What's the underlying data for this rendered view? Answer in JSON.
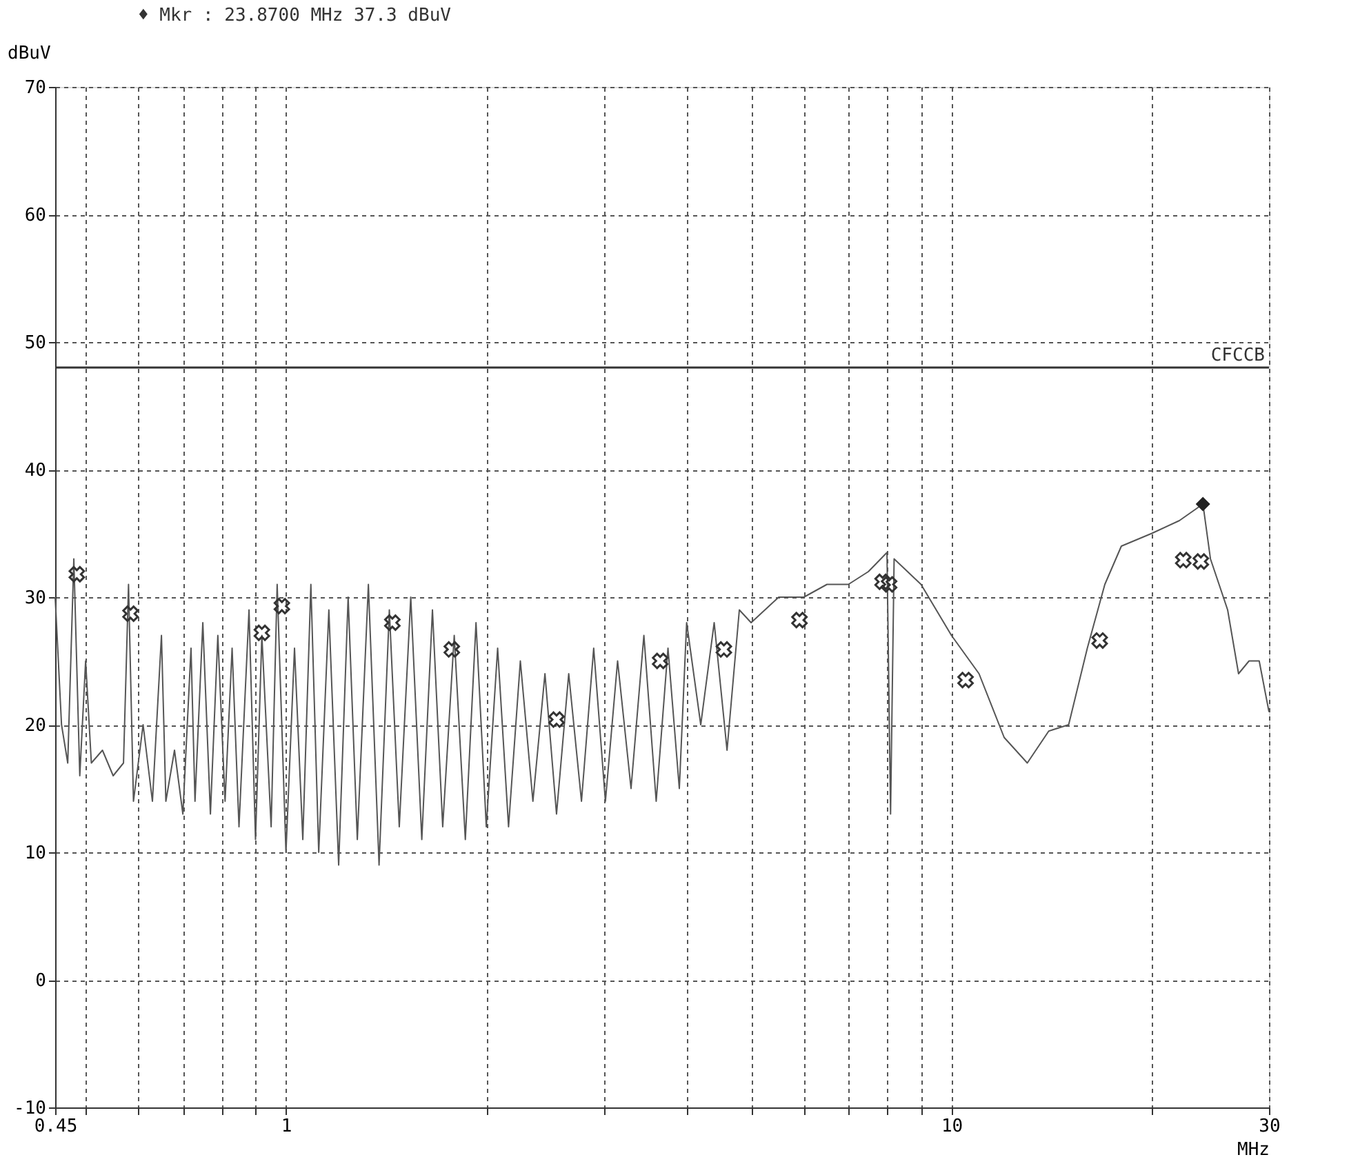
{
  "chart_data": {
    "type": "line",
    "title": "♦ Mkr  :  23.8700 MHz   37.3 dBuV",
    "xlabel": "MHz",
    "ylabel": "dBuV",
    "log": "x",
    "grid": true,
    "xlim": [
      0.45,
      30
    ],
    "ylim": [
      -10,
      70
    ],
    "xticks": [
      0.45,
      {
        "value": 0.5,
        "label": null
      },
      {
        "value": 0.6,
        "label": null
      },
      {
        "value": 0.7,
        "label": null
      },
      {
        "value": 0.8,
        "label": null
      },
      {
        "value": 0.9,
        "label": null
      },
      1,
      {
        "value": 2,
        "label": null
      },
      {
        "value": 3,
        "label": null
      },
      {
        "value": 4,
        "label": null
      },
      {
        "value": 5,
        "label": null
      },
      {
        "value": 6,
        "label": null
      },
      {
        "value": 7,
        "label": null
      },
      {
        "value": 8,
        "label": null
      },
      {
        "value": 9,
        "label": null
      },
      10,
      {
        "value": 20,
        "label": null
      },
      30
    ],
    "yticks": [
      -10,
      0,
      10,
      20,
      30,
      40,
      50,
      60,
      70
    ],
    "ref_lines": [
      {
        "axis": "y",
        "value": 48,
        "label": "CFCCB",
        "color": "#333333",
        "line_style": "solid"
      }
    ],
    "series": [
      {
        "color": "#555555",
        "marker": "none",
        "line_style": "solid",
        "x": [
          0.45,
          0.46,
          0.47,
          0.48,
          0.49,
          0.5,
          0.51,
          0.53,
          0.55,
          0.57,
          0.58,
          0.59,
          0.61,
          0.63,
          0.65,
          0.66,
          0.68,
          0.7,
          0.72,
          0.73,
          0.75,
          0.77,
          0.79,
          0.81,
          0.83,
          0.85,
          0.88,
          0.9,
          0.92,
          0.95,
          0.97,
          1.0,
          1.03,
          1.06,
          1.09,
          1.12,
          1.16,
          1.2,
          1.24,
          1.28,
          1.33,
          1.38,
          1.43,
          1.48,
          1.54,
          1.6,
          1.66,
          1.72,
          1.79,
          1.86,
          1.93,
          2.0,
          2.08,
          2.16,
          2.25,
          2.35,
          2.45,
          2.55,
          2.66,
          2.78,
          2.9,
          3.02,
          3.15,
          3.3,
          3.45,
          3.6,
          3.75,
          3.9,
          4.0,
          4.2,
          4.4,
          4.6,
          4.8,
          5.0,
          5.5,
          6.0,
          6.5,
          7.0,
          7.5,
          8.0,
          8.1,
          8.2,
          9.0,
          10,
          11,
          12,
          13,
          14,
          15,
          16,
          17,
          18,
          20,
          22,
          23.87,
          24.5,
          26,
          27,
          28,
          29,
          30
        ],
        "values": [
          30,
          20,
          17,
          33,
          16,
          25,
          17,
          18,
          16,
          17,
          31,
          14,
          20,
          14,
          27,
          14,
          18,
          13,
          26,
          14,
          28,
          13,
          27,
          14,
          26,
          12,
          29,
          11,
          27,
          12,
          31,
          10,
          26,
          11,
          31,
          10,
          29,
          9,
          30,
          11,
          31,
          9,
          29,
          12,
          30,
          11,
          29,
          12,
          27,
          11,
          28,
          12,
          26,
          12,
          25,
          14,
          24,
          13,
          24,
          14,
          26,
          14,
          25,
          15,
          27,
          14,
          26,
          15,
          28,
          20,
          28,
          18,
          29,
          28,
          30,
          30,
          31,
          31,
          32,
          33.5,
          13,
          33,
          31,
          27,
          24,
          19,
          17,
          19.5,
          20,
          26,
          31,
          34,
          35,
          36,
          37.3,
          33,
          29,
          24,
          25,
          25,
          21
        ]
      },
      {
        "type": "scatter",
        "color": "#333333",
        "marker": "cross",
        "x": [
          0.485,
          0.584,
          0.92,
          0.986,
          1.445,
          1.775,
          2.55,
          3.65,
          4.55,
          5.91,
          7.88,
          8.06,
          10.5,
          16.7,
          22.3,
          23.7
        ],
        "values": [
          31.8,
          28.7,
          27.2,
          29.3,
          28.0,
          25.9,
          20.4,
          25.0,
          25.9,
          28.2,
          31.2,
          31.0,
          23.5,
          26.6,
          32.9,
          32.8
        ]
      },
      {
        "type": "scatter",
        "color": "#222222",
        "marker": "diamond",
        "x": [
          23.87
        ],
        "values": [
          37.3
        ]
      }
    ]
  }
}
